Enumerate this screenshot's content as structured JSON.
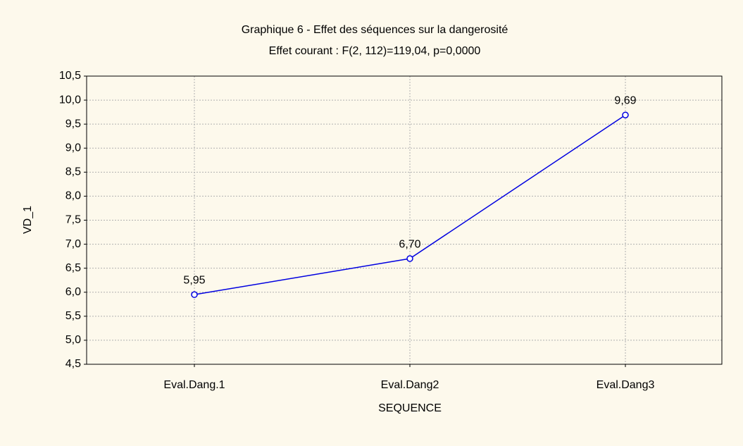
{
  "chart_data": {
    "type": "line",
    "title": "Graphique 6 - Effet des séquences sur la dangerosité",
    "subtitle": "Effet courant : F(2, 112)=119,04, p=0,0000",
    "x_label": "SEQUENCE",
    "y_label": "VD_1",
    "categories": [
      "Eval.Dang.1",
      "Eval.Dang2",
      "Eval.Dang3"
    ],
    "series": [
      {
        "color": "#0000e0",
        "values": [
          5.95,
          6.7,
          9.69
        ],
        "value_labels": [
          "5,95",
          "6,70",
          "9,69"
        ]
      }
    ],
    "ylim": [
      4.5,
      10.5
    ],
    "yticks": [
      {
        "value": 4.5,
        "label": "4,5"
      },
      {
        "value": 5.0,
        "label": "5,0"
      },
      {
        "value": 5.5,
        "label": "5,5"
      },
      {
        "value": 6.0,
        "label": "6,0"
      },
      {
        "value": 6.5,
        "label": "6,5"
      },
      {
        "value": 7.0,
        "label": "7,0"
      },
      {
        "value": 7.5,
        "label": "7,5"
      },
      {
        "value": 8.0,
        "label": "8,0"
      },
      {
        "value": 8.5,
        "label": "8,5"
      },
      {
        "value": 9.0,
        "label": "9,0"
      },
      {
        "value": 9.5,
        "label": "9,5"
      },
      {
        "value": 10.0,
        "label": "10,0"
      },
      {
        "value": 10.5,
        "label": "10,5"
      }
    ],
    "grid": true
  }
}
